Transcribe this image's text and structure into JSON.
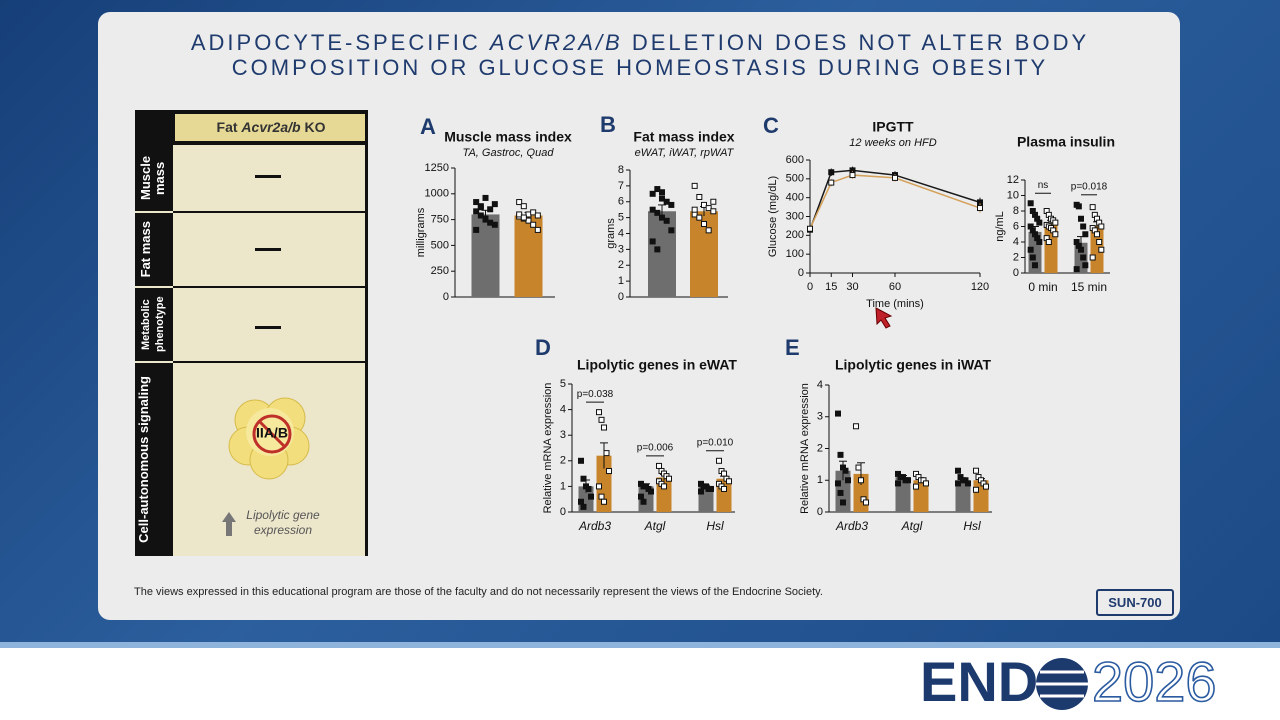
{
  "title": [
    "ADIPOCYTE-SPECIFIC",
    "ACVR2A/B",
    "DELETION DOES NOT ALTER BODY COMPOSITION OR GLUCOSE HOMEOSTASIS DURING OBESITY"
  ],
  "table": {
    "header": [
      "Fat",
      "Acvr2a/b",
      "KO"
    ],
    "rows": [
      "Muscle mass",
      "Fat mass",
      "Metabolic phenotype",
      "Cell-autonomous signaling"
    ],
    "receptor": "IIA/B",
    "note": "Lipolytic gene expression"
  },
  "footer": "The views expressed in this educational program are those of the faculty and do not necessarily represent the views of the Endocrine Society.",
  "badge": "SUN-700",
  "logo": [
    "END",
    "2026"
  ],
  "chart_data": [
    {
      "type": "bar",
      "label": "A",
      "title": "Muscle mass index",
      "subtitle": "TA, Gastroc, Quad",
      "ylabel": "milligrams",
      "categories": [
        null
      ],
      "ylim": [
        0,
        1250
      ],
      "yticks": [
        0,
        250,
        500,
        750,
        1000,
        1250
      ],
      "series": [
        {
          "color": "#6e6e6e",
          "marker": "filled",
          "values": [
            800
          ],
          "errors": [
            40
          ],
          "points": [
            [
              920,
              880,
              960,
              850,
              900,
              830,
              790,
              760,
              720,
              700,
              650,
              870,
              750
            ]
          ]
        },
        {
          "color": "#c8842a",
          "marker": "open",
          "values": [
            790
          ],
          "errors": [
            30
          ],
          "points": [
            [
              920,
              880,
              800,
              820,
              790,
              780,
              760,
              740,
              700,
              650,
              800,
              770
            ]
          ]
        }
      ]
    },
    {
      "type": "bar",
      "label": "B",
      "title": "Fat mass index",
      "subtitle": "eWAT, iWAT, rpWAT",
      "ylabel": "grams",
      "categories": [
        null
      ],
      "ylim": [
        0,
        8
      ],
      "yticks": [
        0,
        1,
        2,
        3,
        4,
        5,
        6,
        7,
        8
      ],
      "series": [
        {
          "color": "#6e6e6e",
          "marker": "filled",
          "values": [
            5.4
          ],
          "errors": [
            0.4
          ],
          "points": [
            [
              6.5,
              6.8,
              6.2,
              6.0,
              5.8,
              5.5,
              5.3,
              5.0,
              4.8,
              4.2,
              3.5,
              3.0,
              6.6
            ]
          ]
        },
        {
          "color": "#c8842a",
          "marker": "open",
          "values": [
            5.4
          ],
          "errors": [
            0.3
          ],
          "points": [
            [
              7.0,
              6.3,
              5.8,
              5.6,
              5.4,
              5.2,
              5.0,
              4.6,
              4.2,
              6.0,
              5.5
            ]
          ]
        }
      ]
    },
    {
      "type": "line",
      "label": "C",
      "title": "IPGTT",
      "subtitle": "12 weeks on HFD",
      "xlabel": "Time (mins)",
      "ylabel": "Glucose (mg/dL)",
      "x": [
        0,
        15,
        30,
        60,
        120
      ],
      "xlim": [
        0,
        120
      ],
      "xticks": [
        0,
        15,
        30,
        60,
        120
      ],
      "ylim": [
        0,
        600
      ],
      "yticks": [
        0,
        100,
        200,
        300,
        400,
        500,
        600
      ],
      "series": [
        {
          "color": "#1a1a1a",
          "marker": "filled",
          "values": [
            230,
            535,
            545,
            520,
            375
          ],
          "errors": [
            10,
            20,
            20,
            20,
            25
          ]
        },
        {
          "color": "#d4a15a",
          "marker": "open",
          "values": [
            235,
            480,
            520,
            505,
            345
          ],
          "errors": [
            10,
            20,
            20,
            20,
            25
          ]
        }
      ]
    },
    {
      "type": "bar",
      "title": "Plasma insulin",
      "ylabel": "ng/mL",
      "categories": [
        "0 min",
        "15 min"
      ],
      "ylim": [
        0,
        12
      ],
      "yticks": [
        0,
        2,
        4,
        6,
        8,
        10,
        12
      ],
      "annotations": [
        {
          "text": "ns",
          "category": 0
        },
        {
          "text": "p=0.018",
          "category": 1
        }
      ],
      "series": [
        {
          "color": "#6e6e6e",
          "marker": "filled",
          "values": [
            5.3,
            3.9
          ],
          "errors": [
            0.7,
            0.8
          ],
          "points": [
            [
              9,
              8,
              7.5,
              7,
              6.5,
              6,
              5.5,
              5,
              4.5,
              4,
              3,
              2,
              1
            ],
            [
              8.8,
              8.6,
              7,
              6,
              5,
              4,
              3.5,
              3,
              2,
              1,
              0.5
            ]
          ]
        },
        {
          "color": "#c8842a",
          "marker": "open",
          "values": [
            6.4,
            6.1
          ],
          "errors": [
            0.4,
            0.5
          ],
          "points": [
            [
              8,
              7.5,
              7,
              6.8,
              6.5,
              6.2,
              6,
              5.8,
              5.5,
              5,
              4.5,
              4
            ],
            [
              8.5,
              7.5,
              7,
              6.5,
              6,
              5.8,
              5.5,
              5,
              4,
              3,
              2
            ]
          ]
        }
      ]
    },
    {
      "type": "bar",
      "label": "D",
      "title": "Lipolytic genes in eWAT",
      "ylabel": "Relative mRNA expression",
      "categories": [
        "Ardb3",
        "Atgl",
        "Hsl"
      ],
      "ylim": [
        0,
        5
      ],
      "yticks": [
        0,
        1,
        2,
        3,
        4,
        5
      ],
      "annotations": [
        {
          "text": "p=0.038",
          "category": 0
        },
        {
          "text": "p=0.006",
          "category": 1
        },
        {
          "text": "p=0.010",
          "category": 2
        }
      ],
      "series": [
        {
          "color": "#6e6e6e",
          "marker": "filled",
          "values": [
            1.0,
            1.0,
            1.0
          ],
          "errors": [
            0.25,
            0.1,
            0.05
          ],
          "points": [
            [
              2.0,
              1.3,
              1.0,
              0.9,
              0.6,
              0.4,
              0.2
            ],
            [
              1.1,
              1.0,
              1.0,
              0.9,
              0.8,
              0.6,
              0.4
            ],
            [
              1.1,
              1.0,
              1.0,
              0.9,
              0.9,
              0.8
            ]
          ]
        },
        {
          "color": "#c8842a",
          "marker": "open",
          "values": [
            2.2,
            1.35,
            1.3
          ],
          "errors": [
            0.5,
            0.12,
            0.1
          ],
          "points": [
            [
              3.9,
              3.6,
              3.3,
              2.3,
              1.6,
              1.0,
              0.6,
              0.4
            ],
            [
              1.8,
              1.6,
              1.5,
              1.4,
              1.3,
              1.2,
              1.1,
              1.0
            ],
            [
              2.0,
              1.6,
              1.5,
              1.3,
              1.2,
              1.1,
              1.0,
              0.9
            ]
          ]
        }
      ]
    },
    {
      "type": "bar",
      "label": "E",
      "title": "Lipolytic genes in iWAT",
      "ylabel": "Relative mRNA expression",
      "categories": [
        "Ardb3",
        "Atgl",
        "Hsl"
      ],
      "ylim": [
        0,
        4
      ],
      "yticks": [
        0,
        1,
        2,
        3,
        4
      ],
      "series": [
        {
          "color": "#6e6e6e",
          "marker": "filled",
          "values": [
            1.3,
            1.1,
            1.0
          ],
          "errors": [
            0.3,
            0.05,
            0.05
          ],
          "points": [
            [
              3.1,
              1.8,
              1.4,
              1.3,
              1.0,
              0.9,
              0.6,
              0.3
            ],
            [
              1.2,
              1.1,
              1.1,
              1.0,
              1.0,
              0.9
            ],
            [
              1.3,
              1.1,
              1.0,
              1.0,
              0.9,
              0.9
            ]
          ]
        },
        {
          "color": "#c8842a",
          "marker": "open",
          "values": [
            1.2,
            1.0,
            1.0
          ],
          "errors": [
            0.35,
            0.05,
            0.05
          ],
          "points": [
            [
              2.7,
              1.4,
              1.0,
              0.4,
              0.3
            ],
            [
              1.2,
              1.1,
              1.0,
              1.0,
              0.9,
              0.8
            ],
            [
              1.3,
              1.1,
              1.0,
              0.9,
              0.8,
              0.7
            ]
          ]
        }
      ]
    }
  ]
}
